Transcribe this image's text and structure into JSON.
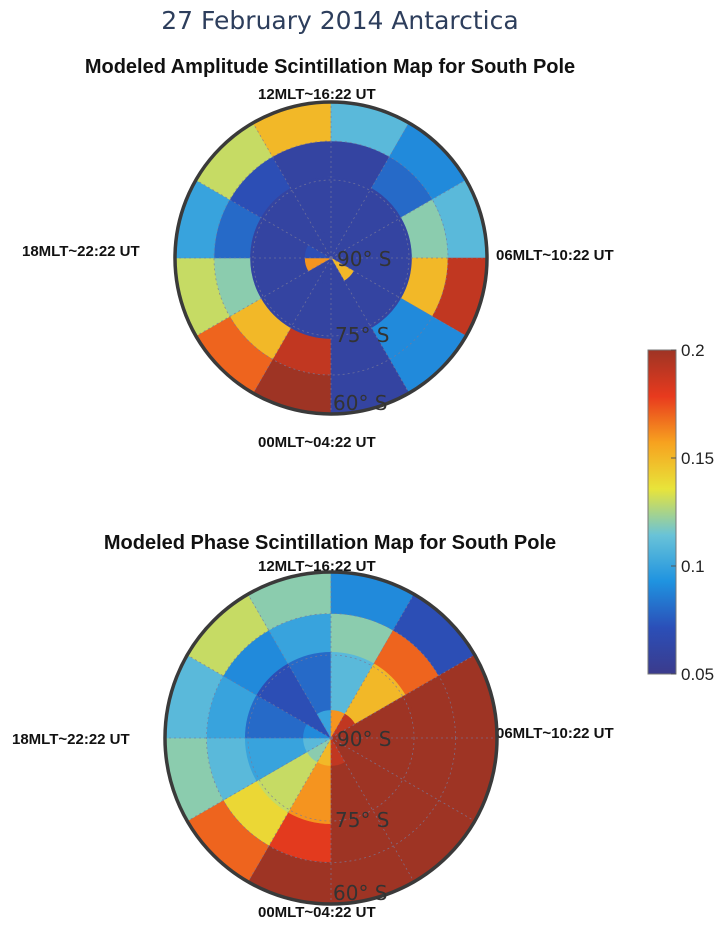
{
  "header": {
    "title": "27 February 2014 Antarctica"
  },
  "colors": {
    "scale": [
      "#3b3b8c",
      "#2b4fb8",
      "#1f93e0",
      "#69c3d8",
      "#e8e43a",
      "#f7a21f",
      "#e83a1e",
      "#9e3424"
    ]
  },
  "chart_data": [
    {
      "type": "heatmap",
      "projection": "polar",
      "title": "Modeled Amplitude Scintillation Map for South Pole",
      "directions": {
        "top": "12MLT~16:22 UT",
        "right": "06MLT~10:22 UT",
        "bottom": "00MLT~04:22 UT",
        "left": "18MLT~22:22 UT"
      },
      "ring_labels": [
        "90° S",
        "75° S",
        "60° S"
      ],
      "sector_order": "Sectors start at 00 MLT (bottom) and proceed clockwise in 2-hour steps",
      "rings": {
        "inner": [
          0.06,
          0.06,
          0.16,
          0.07,
          0.06,
          0.06,
          0.06,
          0.06,
          0.06,
          0.06,
          0.15,
          0.06
        ],
        "middle": [
          0.06,
          0.06,
          0.06,
          0.06,
          0.06,
          0.06,
          0.06,
          0.06,
          0.06,
          0.06,
          0.06,
          0.06
        ],
        "outer_inner": [
          0.19,
          0.15,
          0.12,
          0.08,
          0.07,
          0.06,
          0.06,
          0.08,
          0.12,
          0.15,
          0.09,
          0.06
        ],
        "outer": [
          0.2,
          0.17,
          0.13,
          0.1,
          0.13,
          0.15,
          0.11,
          0.09,
          0.11,
          0.19,
          0.09,
          0.06
        ]
      }
    },
    {
      "type": "heatmap",
      "projection": "polar",
      "title": "Modeled Phase Scintillation Map for South Pole",
      "directions": {
        "top": "12MLT~16:22 UT",
        "right": "06MLT~10:22 UT",
        "bottom": "00MLT~04:22 UT",
        "left": "18MLT~22:22 UT"
      },
      "ring_labels": [
        "90° S",
        "75° S",
        "60° S"
      ],
      "rings": {
        "inner": [
          0.15,
          0.12,
          0.11,
          0.09,
          0.07,
          0.1,
          0.16,
          0.19,
          0.2,
          0.2,
          0.2,
          0.19
        ],
        "middle": [
          0.16,
          0.13,
          0.1,
          0.08,
          0.07,
          0.08,
          0.11,
          0.15,
          0.2,
          0.2,
          0.2,
          0.2
        ],
        "outer_inner": [
          0.18,
          0.14,
          0.11,
          0.1,
          0.09,
          0.1,
          0.12,
          0.17,
          0.2,
          0.2,
          0.2,
          0.2
        ],
        "outer": [
          0.2,
          0.17,
          0.12,
          0.11,
          0.13,
          0.12,
          0.09,
          0.07,
          0.2,
          0.2,
          0.2,
          0.2
        ]
      }
    }
  ],
  "colorbar": {
    "ticks": [
      0.2,
      0.15,
      0.1,
      0.05
    ],
    "tick_labels": [
      "0.2",
      "0.15",
      "0.1",
      "0.05"
    ],
    "min": 0.05,
    "max": 0.2
  }
}
